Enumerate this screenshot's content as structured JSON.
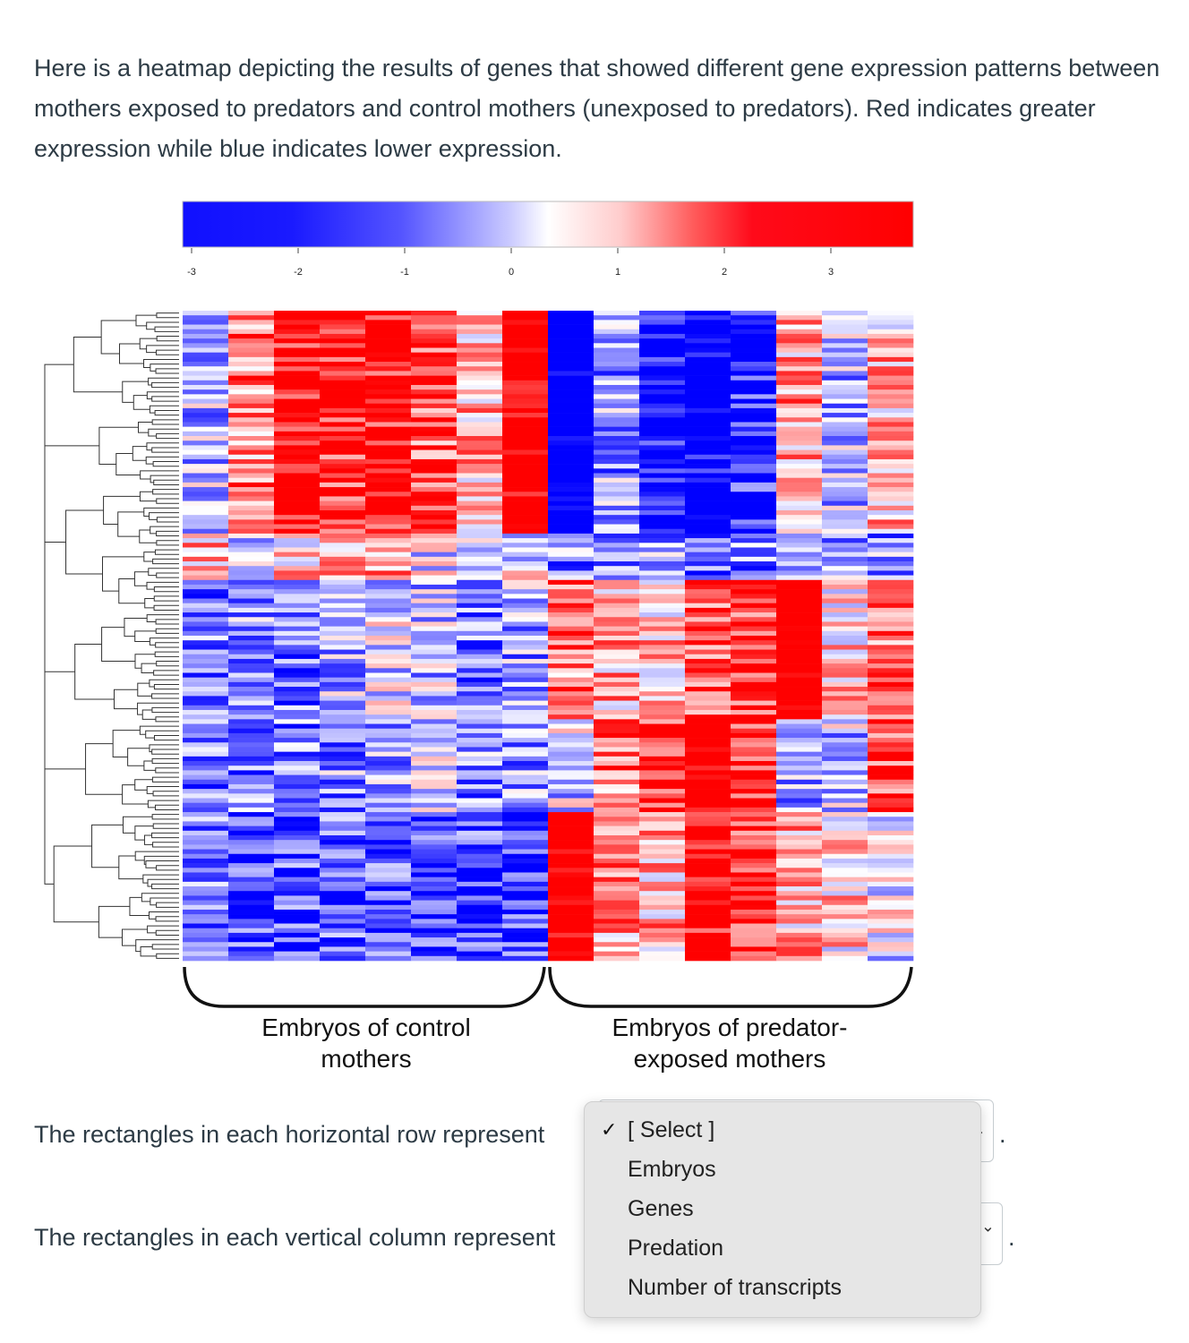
{
  "intro_text": "Here is a heatmap depicting the results of genes that showed different gene expression patterns between mothers exposed to predators and control mothers (unexposed to predators). Red indicates greater expression while blue indicates lower expression.",
  "chart_data": {
    "type": "heatmap",
    "colorbar": {
      "ticks": [
        "-3",
        "-2",
        "-1",
        "0",
        "1",
        "2",
        "3"
      ],
      "range": [
        -3,
        3.8
      ],
      "colors": {
        "low": "#0000ff",
        "mid": "#ffffff",
        "high": "#ff0000"
      }
    },
    "columns": 16,
    "column_groups": [
      {
        "label_line1": "Embryos of control",
        "label_line2": "mothers",
        "columns": [
          1,
          2,
          3,
          4,
          5,
          6,
          7,
          8
        ]
      },
      {
        "label_line1": "Embryos of predator-",
        "label_line2": "exposed mothers",
        "columns": [
          9,
          10,
          11,
          12,
          13,
          14,
          15,
          16
        ]
      }
    ],
    "row_dendrogram": true,
    "row_blocks_column_means": [
      [
        -0.6,
        0.9,
        1.8,
        1.5,
        1.7,
        1.2,
        0.6,
        2.2,
        -2.6,
        -0.8,
        -1.9,
        -2.2,
        -1.6,
        0.7,
        -0.6,
        0.5
      ],
      [
        0.6,
        -0.3,
        0.3,
        0.8,
        0.6,
        -0.2,
        -0.4,
        -0.1,
        -0.9,
        -0.9,
        -0.7,
        -1.0,
        -0.9,
        -0.3,
        -0.8,
        -0.8
      ],
      [
        -0.9,
        -0.8,
        -1.1,
        -0.6,
        -0.3,
        -0.5,
        -0.9,
        -0.7,
        0.9,
        0.6,
        0.5,
        1.3,
        1.3,
        2.6,
        0.3,
        1.0
      ],
      [
        -1.0,
        -0.9,
        -1.0,
        -0.8,
        -0.7,
        -0.2,
        -0.9,
        -0.8,
        -0.4,
        1.0,
        1.4,
        2.4,
        1.4,
        -0.8,
        -0.5,
        1.4
      ],
      [
        -0.9,
        -1.4,
        -1.3,
        -1.2,
        -1.3,
        -1.4,
        -1.3,
        -1.4,
        2.4,
        0.7,
        0.6,
        1.9,
        1.5,
        0.6,
        0.3,
        -0.2
      ]
    ],
    "row_block_counts": [
      48,
      10,
      30,
      20,
      32
    ]
  },
  "questions": [
    {
      "text": "The rectangles in each horizontal row represent",
      "selected": "[ Select ]"
    },
    {
      "text": "The rectangles in each vertical column represent",
      "selected": "[ Select ]"
    }
  ],
  "dropdown": {
    "options": [
      "[ Select ]",
      "Embryos",
      "Genes",
      "Predation",
      "Number of transcripts"
    ],
    "checked": "[ Select ]",
    "check_glyph": "✓"
  },
  "period": "."
}
